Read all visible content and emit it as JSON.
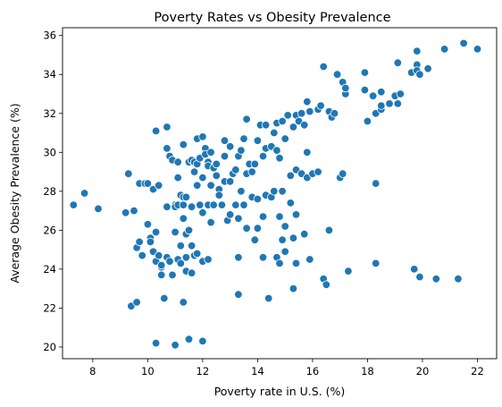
{
  "colors": {
    "point": "#1f77b4",
    "point_edge": "#ffffff",
    "axis": "#000000",
    "background": "#ffffff"
  },
  "chart_data": {
    "type": "scatter",
    "title": "Poverty Rates vs Obesity Prevalence",
    "xlabel": "Poverty rate in U.S. (%)",
    "ylabel": "Average Obesity Prevalence (%)",
    "xlim": [
      6.9,
      22.7
    ],
    "ylim": [
      19.4,
      36.4
    ],
    "xticks": [
      8,
      10,
      12,
      14,
      16,
      18,
      20,
      22
    ],
    "yticks": [
      20,
      22,
      24,
      26,
      28,
      30,
      32,
      34,
      36
    ],
    "grid": false,
    "legend": "none",
    "points": [
      [
        7.3,
        27.3
      ],
      [
        7.7,
        27.9
      ],
      [
        8.2,
        27.1
      ],
      [
        9.2,
        26.9
      ],
      [
        9.3,
        28.9
      ],
      [
        9.4,
        22.1
      ],
      [
        9.6,
        22.3
      ],
      [
        9.5,
        27.0
      ],
      [
        9.6,
        25.1
      ],
      [
        9.7,
        25.4
      ],
      [
        9.7,
        28.4
      ],
      [
        9.8,
        24.7
      ],
      [
        9.9,
        28.4
      ],
      [
        10.0,
        28.4
      ],
      [
        10.0,
        26.3
      ],
      [
        10.1,
        25.6
      ],
      [
        10.1,
        25.4
      ],
      [
        10.2,
        28.1
      ],
      [
        10.2,
        24.9
      ],
      [
        10.3,
        25.9
      ],
      [
        10.3,
        31.1
      ],
      [
        10.3,
        24.4
      ],
      [
        10.4,
        28.3
      ],
      [
        10.4,
        24.7
      ],
      [
        10.5,
        24.1
      ],
      [
        10.5,
        23.7
      ],
      [
        10.5,
        24.2
      ],
      [
        10.6,
        22.5
      ],
      [
        10.7,
        27.2
      ],
      [
        10.7,
        30.2
      ],
      [
        10.7,
        31.3
      ],
      [
        10.7,
        24.6
      ],
      [
        10.8,
        29.8
      ],
      [
        10.8,
        24.4
      ],
      [
        10.9,
        29.6
      ],
      [
        10.9,
        23.7
      ],
      [
        11.0,
        27.3
      ],
      [
        11.0,
        27.2
      ],
      [
        11.0,
        25.9
      ],
      [
        11.1,
        27.3
      ],
      [
        11.1,
        28.7
      ],
      [
        11.1,
        29.5
      ],
      [
        11.1,
        24.5
      ],
      [
        11.2,
        27.8
      ],
      [
        11.2,
        25.2
      ],
      [
        11.2,
        24.3
      ],
      [
        11.3,
        27.3
      ],
      [
        11.3,
        27.7
      ],
      [
        11.3,
        26.6
      ],
      [
        11.3,
        30.4
      ],
      [
        11.3,
        22.3
      ],
      [
        11.4,
        27.7
      ],
      [
        11.4,
        25.8
      ],
      [
        11.4,
        24.6
      ],
      [
        11.4,
        23.9
      ],
      [
        11.5,
        29.5
      ],
      [
        11.5,
        26.0
      ],
      [
        11.6,
        29.6
      ],
      [
        11.6,
        27.2
      ],
      [
        11.6,
        25.2
      ],
      [
        11.6,
        23.8
      ],
      [
        11.7,
        29.5
      ],
      [
        11.7,
        29.0
      ],
      [
        11.7,
        24.7
      ],
      [
        11.8,
        30.7
      ],
      [
        11.8,
        29.4
      ],
      [
        11.8,
        28.3
      ],
      [
        11.8,
        24.8
      ],
      [
        11.9,
        29.7
      ],
      [
        11.9,
        27.3
      ],
      [
        12.0,
        30.8
      ],
      [
        12.0,
        28.7
      ],
      [
        12.0,
        26.9
      ],
      [
        12.0,
        24.4
      ],
      [
        12.1,
        30.2
      ],
      [
        12.1,
        29.9
      ],
      [
        12.2,
        29.5
      ],
      [
        12.2,
        29.3
      ],
      [
        12.2,
        27.3
      ],
      [
        12.2,
        24.5
      ],
      [
        12.3,
        30.0
      ],
      [
        12.3,
        28.3
      ],
      [
        12.3,
        26.4
      ],
      [
        12.4,
        29.2
      ],
      [
        12.4,
        27.3
      ],
      [
        12.5,
        29.4
      ],
      [
        12.5,
        28.8
      ],
      [
        12.6,
        28.1
      ],
      [
        12.6,
        27.8
      ],
      [
        12.7,
        27.3
      ],
      [
        12.8,
        30.6
      ],
      [
        12.8,
        29.8
      ],
      [
        12.8,
        28.5
      ],
      [
        12.9,
        26.5
      ],
      [
        13.0,
        30.3
      ],
      [
        13.0,
        28.5
      ],
      [
        13.0,
        26.8
      ],
      [
        13.1,
        28.9
      ],
      [
        13.2,
        29.1
      ],
      [
        13.2,
        27.3
      ],
      [
        13.3,
        29.8
      ],
      [
        13.3,
        26.6
      ],
      [
        13.3,
        24.6
      ],
      [
        13.3,
        22.7
      ],
      [
        13.4,
        30.1
      ],
      [
        13.4,
        28.0
      ],
      [
        13.5,
        30.7
      ],
      [
        13.5,
        27.3
      ],
      [
        13.6,
        31.7
      ],
      [
        13.6,
        28.9
      ],
      [
        13.6,
        26.1
      ],
      [
        13.7,
        29.4
      ],
      [
        13.8,
        29.0
      ],
      [
        13.8,
        27.7
      ],
      [
        13.9,
        29.4
      ],
      [
        13.9,
        25.5
      ],
      [
        14.0,
        30.6
      ],
      [
        14.0,
        27.6
      ],
      [
        14.0,
        26.1
      ],
      [
        14.1,
        31.4
      ],
      [
        14.2,
        29.8
      ],
      [
        14.2,
        26.7
      ],
      [
        14.2,
        24.6
      ],
      [
        14.3,
        31.4
      ],
      [
        14.3,
        30.2
      ],
      [
        14.3,
        27.8
      ],
      [
        14.4,
        22.5
      ],
      [
        14.5,
        30.3
      ],
      [
        14.5,
        27.7
      ],
      [
        14.6,
        31.0
      ],
      [
        14.6,
        28.0
      ],
      [
        14.7,
        31.5
      ],
      [
        14.7,
        30.1
      ],
      [
        14.7,
        24.6
      ],
      [
        14.8,
        29.7
      ],
      [
        14.8,
        26.7
      ],
      [
        14.8,
        24.3
      ],
      [
        14.9,
        31.6
      ],
      [
        14.9,
        28.0
      ],
      [
        14.9,
        25.5
      ],
      [
        15.0,
        30.7
      ],
      [
        15.0,
        26.2
      ],
      [
        15.0,
        24.9
      ],
      [
        15.1,
        31.9
      ],
      [
        15.2,
        28.8
      ],
      [
        15.2,
        27.4
      ],
      [
        15.3,
        31.3
      ],
      [
        15.3,
        25.6
      ],
      [
        15.3,
        23.0
      ],
      [
        15.4,
        31.9
      ],
      [
        15.4,
        29.1
      ],
      [
        15.4,
        26.8
      ],
      [
        15.4,
        24.3
      ],
      [
        15.5,
        31.6
      ],
      [
        15.6,
        32.0
      ],
      [
        15.6,
        28.9
      ],
      [
        15.7,
        31.4
      ],
      [
        15.7,
        25.8
      ],
      [
        15.8,
        32.6
      ],
      [
        15.8,
        30.0
      ],
      [
        15.8,
        28.7
      ],
      [
        15.9,
        32.1
      ],
      [
        15.9,
        24.5
      ],
      [
        16.0,
        28.9
      ],
      [
        16.2,
        32.2
      ],
      [
        16.2,
        29.0
      ],
      [
        16.3,
        32.4
      ],
      [
        16.4,
        34.4
      ],
      [
        16.4,
        23.5
      ],
      [
        16.5,
        23.2
      ],
      [
        16.6,
        32.1
      ],
      [
        16.6,
        26.0
      ],
      [
        16.7,
        31.8
      ],
      [
        16.8,
        32.0
      ],
      [
        16.9,
        34.0
      ],
      [
        17.0,
        28.7
      ],
      [
        17.1,
        33.6
      ],
      [
        17.1,
        28.9
      ],
      [
        17.2,
        33.0
      ],
      [
        17.2,
        33.3
      ],
      [
        17.3,
        23.9
      ],
      [
        17.9,
        34.1
      ],
      [
        17.9,
        33.2
      ],
      [
        18.0,
        31.6
      ],
      [
        18.2,
        32.9
      ],
      [
        18.3,
        32.0
      ],
      [
        18.3,
        28.4
      ],
      [
        18.3,
        24.3
      ],
      [
        18.5,
        33.1
      ],
      [
        18.5,
        32.2
      ],
      [
        18.5,
        32.4
      ],
      [
        18.8,
        32.5
      ],
      [
        19.0,
        32.9
      ],
      [
        19.1,
        32.5
      ],
      [
        19.1,
        34.6
      ],
      [
        19.2,
        33.0
      ],
      [
        19.6,
        34.1
      ],
      [
        19.7,
        24.0
      ],
      [
        19.8,
        35.2
      ],
      [
        19.8,
        34.5
      ],
      [
        19.8,
        34.2
      ],
      [
        19.9,
        34.0
      ],
      [
        19.9,
        23.6
      ],
      [
        20.2,
        34.3
      ],
      [
        20.5,
        23.5
      ],
      [
        20.8,
        35.3
      ],
      [
        21.3,
        23.5
      ],
      [
        21.5,
        35.6
      ],
      [
        22.0,
        35.3
      ],
      [
        10.3,
        20.2
      ],
      [
        11.0,
        20.1
      ],
      [
        11.5,
        20.4
      ],
      [
        12.0,
        20.3
      ]
    ]
  }
}
